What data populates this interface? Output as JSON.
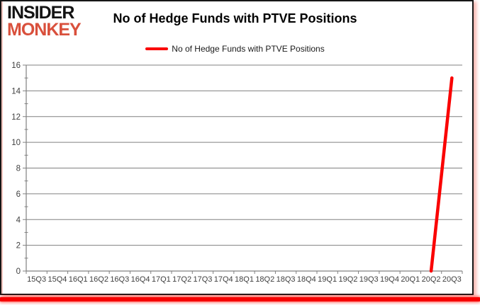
{
  "branding": {
    "logo_line1": "INSIDER",
    "logo_line2": "MONKEY",
    "logo_color_primary": "#131313",
    "logo_color_secondary": "#d9503c"
  },
  "header": {
    "title": "No of Hedge Funds with PTVE Positions"
  },
  "legend": {
    "label": "No of Hedge Funds with PTVE Positions",
    "line_color": "#fa0000"
  },
  "chart_data": {
    "type": "line",
    "title": "No of Hedge Funds with PTVE Positions",
    "categories": [
      "15Q3",
      "15Q4",
      "16Q1",
      "16Q2",
      "16Q3",
      "16Q4",
      "17Q1",
      "17Q2",
      "17Q3",
      "17Q4",
      "18Q1",
      "18Q2",
      "18Q3",
      "18Q4",
      "19Q1",
      "19Q2",
      "19Q3",
      "19Q4",
      "20Q1",
      "20Q2",
      "20Q3"
    ],
    "series": [
      {
        "name": "No of Hedge Funds with PTVE Positions",
        "color": "#fa0000",
        "values": [
          null,
          null,
          null,
          null,
          null,
          null,
          null,
          null,
          null,
          null,
          null,
          null,
          null,
          null,
          null,
          null,
          null,
          null,
          null,
          0,
          15
        ]
      }
    ],
    "xlabel": "",
    "ylabel": "",
    "ylim": [
      0,
      16
    ],
    "ytick_step": 2,
    "grid": true,
    "legend_position": "top",
    "colors": {
      "gridline": "#808080",
      "axis": "#808080",
      "tick_label": "#3f3f3f"
    }
  }
}
